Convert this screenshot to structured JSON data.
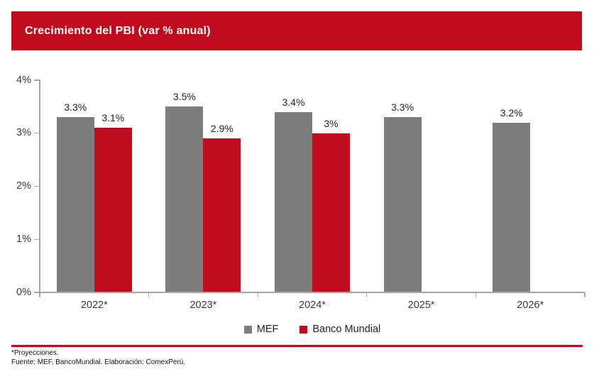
{
  "header": {
    "title": "Crecimiento del PBI (var % anual)"
  },
  "chart_data": {
    "type": "bar",
    "title": "Crecimiento del PBI (var % anual)",
    "categories": [
      "2022*",
      "2023*",
      "2024*",
      "2025*",
      "2026*"
    ],
    "series": [
      {
        "name": "MEF",
        "color": "#7D7D7D",
        "values": [
          3.3,
          3.5,
          3.4,
          3.3,
          3.2
        ],
        "labels": [
          "3.3%",
          "3.5%",
          "3.4%",
          "3.3%",
          "3.2%"
        ]
      },
      {
        "name": "Banco Mundial",
        "color": "#C00D1D",
        "values": [
          3.1,
          2.9,
          3.0,
          null,
          null
        ],
        "labels": [
          "3.1%",
          "2.9%",
          "3%",
          null,
          null
        ]
      }
    ],
    "ylim": [
      0,
      4
    ],
    "yticks": [
      "0%",
      "1%",
      "2%",
      "3%",
      "4%"
    ],
    "xlabel": "",
    "ylabel": "",
    "grid": false,
    "legend_position": "bottom"
  },
  "legend": {
    "items": [
      {
        "label": "MEF",
        "color": "#7D7D7D"
      },
      {
        "label": "Banco Mundial",
        "color": "#C00D1D"
      }
    ]
  },
  "footer": {
    "note1": "*Proyecciones.",
    "note2": "Fuente: MEF, BancoMundial. Elaboración: ComexPerú."
  },
  "colors": {
    "accent_red": "#C00D1D",
    "bar_gray": "#7D7D7D",
    "axis_gray": "#A6A6A6"
  }
}
